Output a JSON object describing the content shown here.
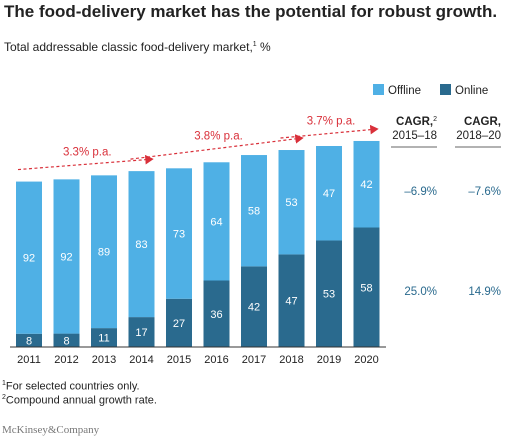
{
  "title": "The food-delivery market has the potential for robust growth.",
  "subtitle": "Total addressable classic food-delivery market,",
  "subtitle_sup": "1",
  "subtitle_unit": "%",
  "chart_data": {
    "type": "bar",
    "stacked": true,
    "categories": [
      "2011",
      "2012",
      "2013",
      "2014",
      "2015",
      "2016",
      "2017",
      "2018",
      "2019",
      "2020"
    ],
    "series": [
      {
        "name": "Online",
        "color": "#2a6a8e",
        "values": [
          8,
          8,
          11,
          17,
          27,
          36,
          42,
          47,
          53,
          58
        ]
      },
      {
        "name": "Offline",
        "color": "#4fb0e5",
        "values": [
          92,
          92,
          89,
          83,
          73,
          64,
          58,
          53,
          47,
          42
        ]
      }
    ],
    "totals_relative": [
      0.823,
      0.834,
      0.854,
      0.875,
      0.889,
      0.919,
      0.955,
      0.98,
      1.0,
      1.025
    ],
    "legend": [
      "Offline",
      "Online"
    ],
    "legend_position": "top-right",
    "growth_annotations": [
      {
        "label": "3.3% p.a.",
        "from": "2011",
        "to": "2014"
      },
      {
        "label": "3.8% p.a.",
        "from": "2014",
        "to": "2018"
      },
      {
        "label": "3.7% p.a.",
        "from": "2018",
        "to": "2020"
      }
    ],
    "cagr": {
      "columns": [
        {
          "header": "CAGR,",
          "header_sup": "2",
          "period": "2015–18",
          "offline": "–6.9%",
          "online": "25.0%"
        },
        {
          "header": "CAGR,",
          "header_sup": "",
          "period": "2018–20",
          "offline": "–7.6%",
          "online": "14.9%"
        }
      ]
    },
    "annotation_color": "#d9303a"
  },
  "footnotes": {
    "one_mark": "1",
    "one": "For selected countries only.",
    "two_mark": "2",
    "two": "Compound annual growth rate."
  },
  "brand": "McKinsey&Company"
}
